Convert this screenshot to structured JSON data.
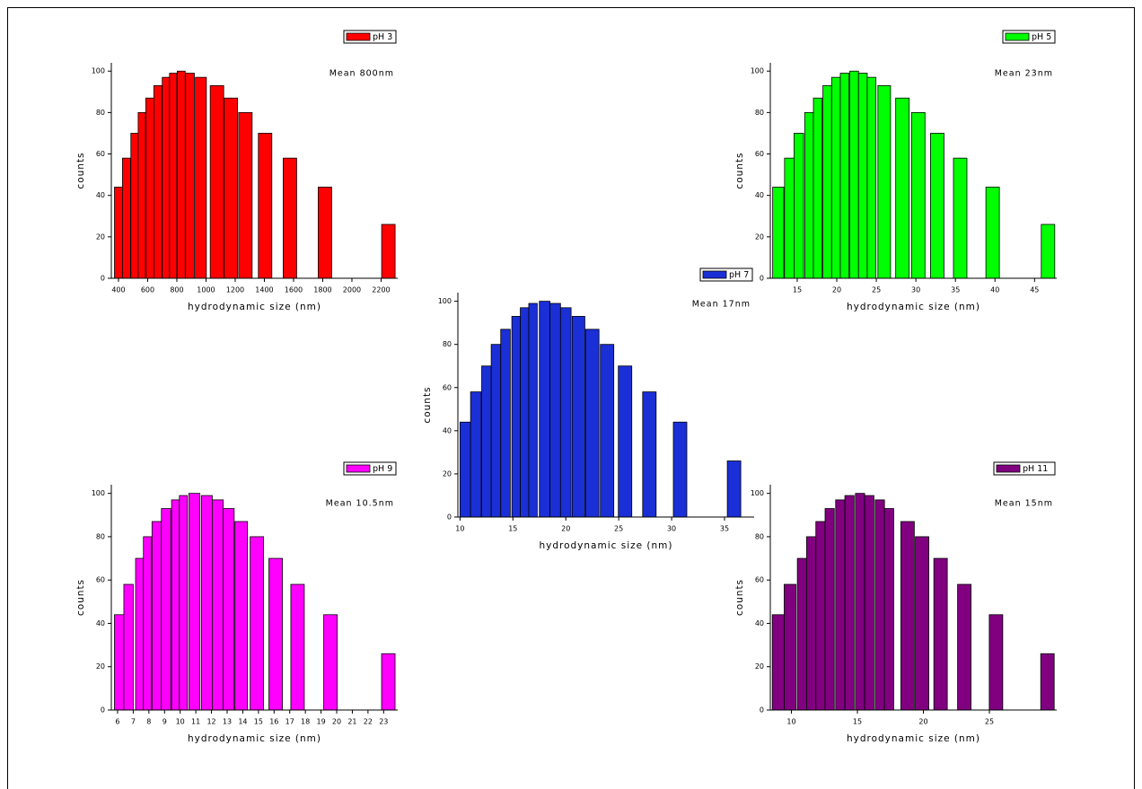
{
  "chart_data": [
    {
      "type": "bar",
      "xlabel": "hydrodynamic size (nm)",
      "ylabel": "counts",
      "annotation": "Mean 800nm",
      "x": [
        400,
        455,
        510,
        560,
        615,
        670,
        725,
        775,
        830,
        890,
        965,
        1075,
        1170,
        1270,
        1405,
        1575,
        1815,
        2250
      ],
      "series": [
        {
          "name": "pH 3",
          "color": "#ff0000",
          "values": [
            44,
            58,
            70,
            80,
            87,
            93,
            97,
            99,
            100,
            99,
            97,
            93,
            87,
            80,
            70,
            58,
            44,
            26
          ]
        }
      ],
      "xlim": [
        351,
        2314
      ],
      "xticks": [
        400,
        600,
        800,
        1000,
        1200,
        1400,
        1600,
        1800,
        2000,
        2200
      ],
      "ylim": [
        0,
        104
      ],
      "yticks": [
        0,
        20,
        40,
        60,
        80,
        100
      ]
    },
    {
      "type": "bar",
      "xlabel": "hydrodynamic size (nm)",
      "ylabel": "counts",
      "annotation": "Mean 23nm",
      "x": [
        12.6,
        14.0,
        15.2,
        16.5,
        17.6,
        18.8,
        19.9,
        21.0,
        22.2,
        23.3,
        24.4,
        26.0,
        28.3,
        30.3,
        32.7,
        35.6,
        39.7,
        46.7
      ],
      "series": [
        {
          "name": "pH 5",
          "color": "#00ff00",
          "values": [
            44,
            58,
            70,
            80,
            87,
            93,
            97,
            99,
            100,
            99,
            97,
            93,
            87,
            80,
            70,
            58,
            44,
            26
          ]
        }
      ],
      "xlim": [
        11.6,
        47.8
      ],
      "xticks": [
        15,
        20,
        25,
        30,
        35,
        40,
        45
      ],
      "ylim": [
        0,
        104
      ],
      "yticks": [
        0,
        20,
        40,
        60,
        80,
        100
      ]
    },
    {
      "type": "bar",
      "xlabel": "hydrodynamic size (nm)",
      "ylabel": "counts",
      "annotation": "Mean 17nm",
      "x": [
        10.5,
        11.5,
        12.5,
        13.4,
        14.3,
        15.3,
        16.1,
        16.9,
        18.0,
        19.0,
        20.0,
        21.2,
        22.5,
        23.9,
        25.6,
        27.9,
        30.8,
        35.9
      ],
      "series": [
        {
          "name": "pH 7",
          "color": "#1a2fd6",
          "values": [
            44,
            58,
            70,
            80,
            87,
            93,
            97,
            99,
            100,
            99,
            97,
            93,
            87,
            80,
            70,
            58,
            44,
            26
          ]
        }
      ],
      "xlim": [
        9.8,
        37.8
      ],
      "xticks": [
        10,
        15,
        20,
        25,
        30,
        35
      ],
      "ylim": [
        0,
        104
      ],
      "yticks": [
        0,
        20,
        40,
        60,
        80,
        100
      ]
    },
    {
      "type": "bar",
      "xlabel": "hydrodynamic size (nm)",
      "ylabel": "counts",
      "annotation": "Mean 10.5nm",
      "x": [
        6.1,
        6.7,
        7.4,
        7.9,
        8.5,
        9.1,
        9.7,
        10.2,
        10.9,
        11.7,
        12.4,
        13.1,
        13.9,
        14.9,
        16.1,
        17.5,
        19.6,
        23.3
      ],
      "series": [
        {
          "name": "pH 9",
          "color": "#ff00ff",
          "values": [
            44,
            58,
            70,
            80,
            87,
            93,
            97,
            99,
            100,
            99,
            97,
            93,
            87,
            80,
            70,
            58,
            44,
            26
          ]
        }
      ],
      "xlim": [
        5.6,
        23.9
      ],
      "xticks": [
        6,
        7,
        8,
        9,
        10,
        11,
        12,
        13,
        14,
        15,
        16,
        17,
        18,
        19,
        20,
        21,
        22,
        23
      ],
      "ylim": [
        0,
        104
      ],
      "yticks": [
        0,
        20,
        40,
        60,
        80,
        100
      ]
    },
    {
      "type": "bar",
      "xlabel": "hydrodynamic size (nm)",
      "ylabel": "counts",
      "annotation": "Mean 15nm",
      "x": [
        9.0,
        9.9,
        10.8,
        11.5,
        12.2,
        12.9,
        13.7,
        14.4,
        15.2,
        15.9,
        16.7,
        17.4,
        18.8,
        19.9,
        21.3,
        23.1,
        25.5,
        29.4
      ],
      "series": [
        {
          "name": "pH 11",
          "color": "#800080",
          "values": [
            44,
            58,
            70,
            80,
            87,
            93,
            97,
            99,
            100,
            99,
            97,
            93,
            87,
            80,
            70,
            58,
            44,
            26
          ]
        }
      ],
      "xlim": [
        8.4,
        30.1
      ],
      "xticks": [
        10,
        15,
        20,
        25
      ],
      "ylim": [
        0,
        104
      ],
      "yticks": [
        0,
        20,
        40,
        60,
        80,
        100
      ]
    }
  ]
}
